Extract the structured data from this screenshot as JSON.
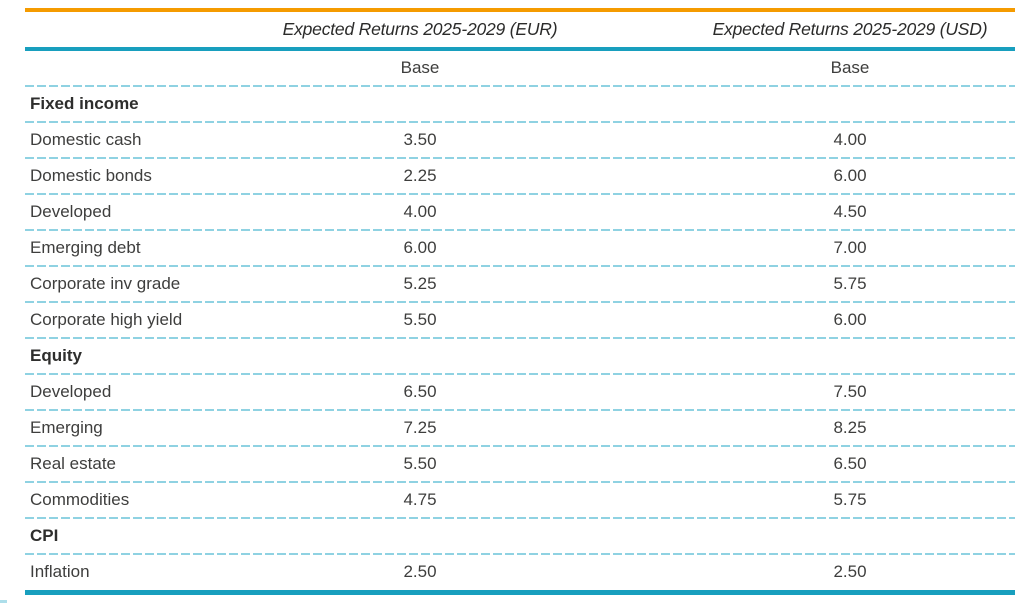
{
  "table": {
    "column_headers": {
      "eur": "Expected Returns 2025-2029 (EUR)",
      "usd": "Expected Returns 2025-2029 (USD)"
    },
    "sub_header": {
      "eur": "Base",
      "usd": "Base"
    },
    "rows": [
      {
        "type": "subheader",
        "label": "",
        "eur": "Base",
        "usd": "Base"
      },
      {
        "type": "section",
        "label": "Fixed income"
      },
      {
        "type": "data",
        "label": "Domestic cash",
        "eur": "3.50",
        "usd": "4.00"
      },
      {
        "type": "data",
        "label": "Domestic bonds",
        "eur": "2.25",
        "usd": "6.00"
      },
      {
        "type": "data",
        "label": "Developed",
        "eur": "4.00",
        "usd": "4.50"
      },
      {
        "type": "data",
        "label": "Emerging debt",
        "eur": "6.00",
        "usd": "7.00"
      },
      {
        "type": "data",
        "label": "Corporate inv grade",
        "eur": "5.25",
        "usd": "5.75"
      },
      {
        "type": "data",
        "label": "Corporate high yield",
        "eur": "5.50",
        "usd": "6.00"
      },
      {
        "type": "section",
        "label": "Equity"
      },
      {
        "type": "data",
        "label": "Developed",
        "eur": "6.50",
        "usd": "7.50"
      },
      {
        "type": "data",
        "label": "Emerging",
        "eur": "7.25",
        "usd": "8.25"
      },
      {
        "type": "data",
        "label": "Real estate",
        "eur": "5.50",
        "usd": "6.50"
      },
      {
        "type": "data",
        "label": "Commodities",
        "eur": "4.75",
        "usd": "5.75"
      },
      {
        "type": "section",
        "label": "CPI"
      },
      {
        "type": "data",
        "label": "Inflation",
        "eur": "2.50",
        "usd": "2.50"
      }
    ]
  },
  "colors": {
    "accent_orange": "#F59B00",
    "accent_teal": "#189FBE",
    "divider_blue": "#8FD2E2",
    "text": "#3E3E3D"
  }
}
